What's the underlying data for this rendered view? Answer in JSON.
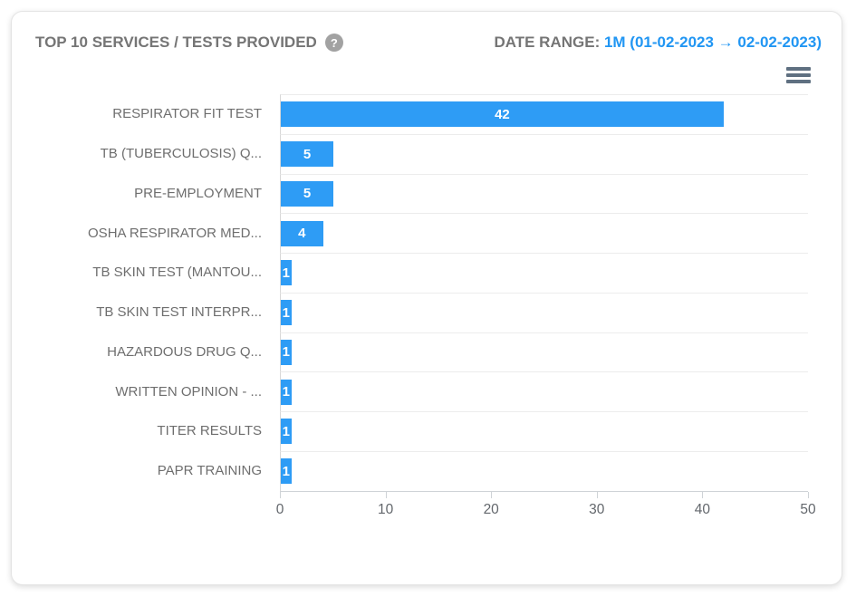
{
  "header": {
    "title": "TOP 10 SERVICES / TESTS PROVIDED",
    "help_icon": "?",
    "date_range_label": "DATE RANGE:",
    "date_range_value": "1M (01-02-2023 → 02-02-2023)"
  },
  "toolbar": {
    "menu_icon": "hamburger-menu"
  },
  "colors": {
    "bar": "#2e9cf5",
    "date_range_text": "#2196f3",
    "title_text": "#757575",
    "category_label_text": "#6e6e6e",
    "axis_label_text": "#63676c",
    "gridline": "#ececec",
    "axis_line": "#cfd3d7"
  },
  "chart_data": {
    "type": "bar",
    "orientation": "horizontal",
    "title": "TOP 10 SERVICES / TESTS PROVIDED",
    "categories": [
      "RESPIRATOR FIT TEST",
      "TB (TUBERCULOSIS) Q...",
      "PRE-EMPLOYMENT",
      "OSHA RESPIRATOR MED...",
      "TB SKIN TEST (MANTOU...",
      "TB SKIN TEST INTERPR...",
      "HAZARDOUS DRUG Q...",
      "WRITTEN OPINION - ...",
      "TITER RESULTS",
      "PAPR TRAINING"
    ],
    "values": [
      42,
      5,
      5,
      4,
      1,
      1,
      1,
      1,
      1,
      1
    ],
    "xlim": [
      0,
      50
    ],
    "x_ticks": [
      0,
      10,
      20,
      30,
      40,
      50
    ],
    "value_labels_position": "inside-center",
    "grid": true,
    "legend": false
  }
}
